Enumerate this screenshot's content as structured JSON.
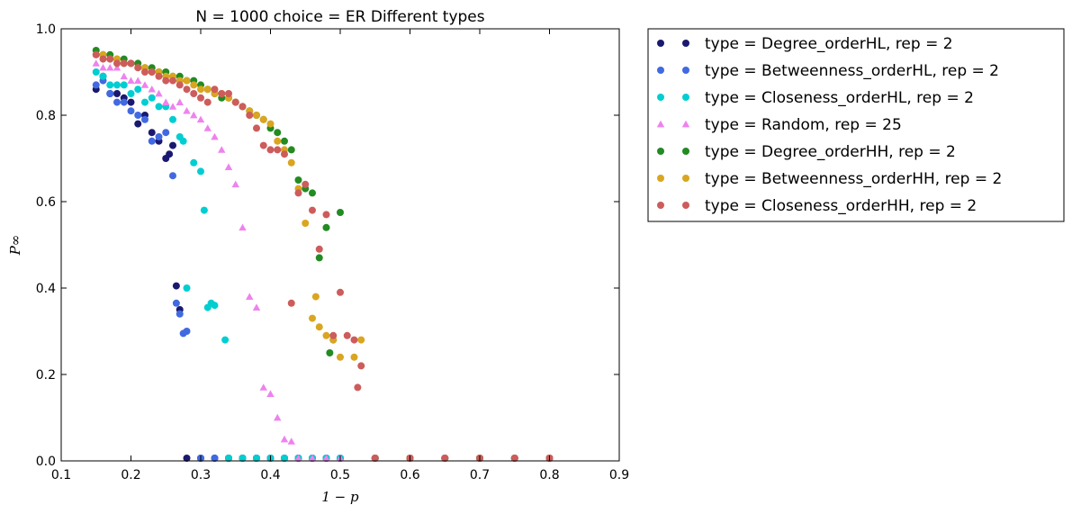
{
  "chart_data": {
    "type": "scatter",
    "title": "N = 1000 choice = ER Different types",
    "xlabel": "1 − p",
    "ylabel": "P∞",
    "xlim": [
      0.1,
      0.9
    ],
    "ylim": [
      0.0,
      1.0
    ],
    "xticks": [
      "0.1",
      "0.2",
      "0.3",
      "0.4",
      "0.5",
      "0.6",
      "0.7",
      "0.8",
      "0.9"
    ],
    "yticks": [
      "0.0",
      "0.2",
      "0.4",
      "0.6",
      "0.8",
      "1.0"
    ],
    "grid": false,
    "legend_position": "outside-right",
    "series": [
      {
        "name": "type = Degree_orderHL, rep = 2",
        "color": "#191970",
        "marker": "circle",
        "x": [
          0.15,
          0.16,
          0.17,
          0.18,
          0.19,
          0.2,
          0.21,
          0.22,
          0.23,
          0.24,
          0.25,
          0.255,
          0.26,
          0.265,
          0.27,
          0.28,
          0.3,
          0.32,
          0.34,
          0.36,
          0.38,
          0.4,
          0.42,
          0.44,
          0.46,
          0.48,
          0.5,
          0.55,
          0.6,
          0.65,
          0.7,
          0.75,
          0.8
        ],
        "y": [
          0.86,
          0.89,
          0.85,
          0.85,
          0.84,
          0.83,
          0.78,
          0.8,
          0.76,
          0.74,
          0.7,
          0.71,
          0.73,
          0.405,
          0.35,
          0.0,
          0.0,
          0.0,
          0.0,
          0.0,
          0.0,
          0.0,
          0.0,
          0.0,
          0.0,
          0.0,
          0.0,
          0.0,
          0.0,
          0.0,
          0.0,
          0.0,
          0.0
        ]
      },
      {
        "name": "type = Betweenness_orderHL, rep = 2",
        "color": "#4169e1",
        "marker": "circle",
        "x": [
          0.15,
          0.16,
          0.17,
          0.18,
          0.19,
          0.2,
          0.21,
          0.22,
          0.23,
          0.24,
          0.25,
          0.26,
          0.265,
          0.27,
          0.275,
          0.28,
          0.3,
          0.32,
          0.34,
          0.36,
          0.38,
          0.4,
          0.42,
          0.44,
          0.46,
          0.48,
          0.5,
          0.55,
          0.6,
          0.65,
          0.7,
          0.75,
          0.8
        ],
        "y": [
          0.87,
          0.88,
          0.85,
          0.83,
          0.83,
          0.81,
          0.8,
          0.79,
          0.74,
          0.75,
          0.76,
          0.66,
          0.365,
          0.34,
          0.295,
          0.3,
          0.0,
          0.0,
          0.0,
          0.0,
          0.0,
          0.0,
          0.0,
          0.0,
          0.0,
          0.0,
          0.0,
          0.0,
          0.0,
          0.0,
          0.0,
          0.0,
          0.0
        ]
      },
      {
        "name": "type = Closeness_orderHL, rep = 2",
        "color": "#00ced1",
        "marker": "circle",
        "x": [
          0.15,
          0.16,
          0.17,
          0.18,
          0.19,
          0.2,
          0.21,
          0.22,
          0.23,
          0.24,
          0.25,
          0.26,
          0.27,
          0.275,
          0.28,
          0.29,
          0.3,
          0.305,
          0.31,
          0.315,
          0.32,
          0.335,
          0.34,
          0.36,
          0.38,
          0.4,
          0.42,
          0.44,
          0.46,
          0.48,
          0.5,
          0.55,
          0.6,
          0.65,
          0.7,
          0.75,
          0.8
        ],
        "y": [
          0.9,
          0.89,
          0.87,
          0.87,
          0.87,
          0.85,
          0.86,
          0.83,
          0.84,
          0.82,
          0.82,
          0.79,
          0.75,
          0.74,
          0.4,
          0.69,
          0.67,
          0.58,
          0.355,
          0.365,
          0.36,
          0.28,
          0.0,
          0.0,
          0.0,
          0.0,
          0.0,
          0.0,
          0.0,
          0.0,
          0.0,
          0.0,
          0.0,
          0.0,
          0.0,
          0.0,
          0.0
        ]
      },
      {
        "name": "type = Random, rep = 25",
        "color": "#ee82ee",
        "marker": "triangle",
        "x": [
          0.15,
          0.16,
          0.17,
          0.18,
          0.19,
          0.2,
          0.21,
          0.22,
          0.23,
          0.24,
          0.25,
          0.26,
          0.27,
          0.28,
          0.29,
          0.3,
          0.31,
          0.32,
          0.33,
          0.34,
          0.35,
          0.36,
          0.37,
          0.38,
          0.39,
          0.4,
          0.41,
          0.42,
          0.43,
          0.44,
          0.46,
          0.48,
          0.5,
          0.55,
          0.6,
          0.65,
          0.7,
          0.75,
          0.8
        ],
        "y": [
          0.92,
          0.91,
          0.91,
          0.91,
          0.89,
          0.88,
          0.88,
          0.87,
          0.86,
          0.85,
          0.83,
          0.82,
          0.83,
          0.81,
          0.8,
          0.79,
          0.77,
          0.75,
          0.72,
          0.68,
          0.64,
          0.54,
          0.38,
          0.355,
          0.17,
          0.155,
          0.1,
          0.05,
          0.045,
          0.0,
          0.0,
          0.0,
          0.0,
          0.0,
          0.0,
          0.0,
          0.0,
          0.0,
          0.0
        ]
      },
      {
        "name": "type = Degree_orderHH, rep = 2",
        "color": "#228b22",
        "marker": "circle",
        "x": [
          0.15,
          0.16,
          0.17,
          0.18,
          0.19,
          0.2,
          0.21,
          0.22,
          0.23,
          0.24,
          0.25,
          0.26,
          0.27,
          0.28,
          0.29,
          0.3,
          0.31,
          0.32,
          0.33,
          0.34,
          0.35,
          0.36,
          0.37,
          0.38,
          0.39,
          0.4,
          0.41,
          0.42,
          0.43,
          0.44,
          0.45,
          0.46,
          0.47,
          0.48,
          0.485,
          0.49,
          0.5,
          0.55,
          0.6,
          0.65,
          0.7,
          0.75,
          0.8
        ],
        "y": [
          0.95,
          0.94,
          0.94,
          0.93,
          0.93,
          0.92,
          0.92,
          0.91,
          0.91,
          0.9,
          0.9,
          0.89,
          0.89,
          0.88,
          0.88,
          0.87,
          0.86,
          0.85,
          0.84,
          0.84,
          0.83,
          0.82,
          0.81,
          0.8,
          0.79,
          0.77,
          0.76,
          0.74,
          0.72,
          0.65,
          0.63,
          0.62,
          0.47,
          0.54,
          0.25,
          0.28,
          0.575,
          0.0,
          0.0,
          0.0,
          0.0,
          0.0,
          0.0
        ]
      },
      {
        "name": "type = Betweenness_orderHH, rep = 2",
        "color": "#daa520",
        "marker": "circle",
        "x": [
          0.15,
          0.16,
          0.17,
          0.18,
          0.19,
          0.2,
          0.21,
          0.22,
          0.23,
          0.24,
          0.25,
          0.26,
          0.27,
          0.28,
          0.29,
          0.3,
          0.31,
          0.32,
          0.33,
          0.34,
          0.35,
          0.36,
          0.37,
          0.38,
          0.39,
          0.4,
          0.41,
          0.42,
          0.43,
          0.44,
          0.45,
          0.46,
          0.465,
          0.47,
          0.48,
          0.49,
          0.5,
          0.52,
          0.53,
          0.55,
          0.6,
          0.65,
          0.7,
          0.75,
          0.8
        ],
        "y": [
          0.94,
          0.94,
          0.93,
          0.93,
          0.92,
          0.92,
          0.91,
          0.91,
          0.9,
          0.9,
          0.89,
          0.89,
          0.88,
          0.88,
          0.87,
          0.86,
          0.86,
          0.85,
          0.85,
          0.84,
          0.83,
          0.82,
          0.81,
          0.8,
          0.79,
          0.78,
          0.74,
          0.72,
          0.69,
          0.63,
          0.55,
          0.33,
          0.38,
          0.31,
          0.29,
          0.28,
          0.24,
          0.24,
          0.28,
          0.0,
          0.0,
          0.0,
          0.0,
          0.0,
          0.0
        ]
      },
      {
        "name": "type = Closeness_orderHH, rep = 2",
        "color": "#cd5c5c",
        "marker": "circle",
        "x": [
          0.15,
          0.16,
          0.17,
          0.18,
          0.19,
          0.2,
          0.21,
          0.22,
          0.23,
          0.24,
          0.25,
          0.26,
          0.27,
          0.28,
          0.29,
          0.3,
          0.31,
          0.32,
          0.33,
          0.34,
          0.35,
          0.36,
          0.37,
          0.38,
          0.39,
          0.4,
          0.41,
          0.42,
          0.43,
          0.44,
          0.45,
          0.46,
          0.47,
          0.48,
          0.49,
          0.5,
          0.51,
          0.52,
          0.525,
          0.53,
          0.55,
          0.6,
          0.65,
          0.7,
          0.75,
          0.8
        ],
        "y": [
          0.94,
          0.93,
          0.93,
          0.92,
          0.92,
          0.92,
          0.91,
          0.9,
          0.9,
          0.89,
          0.88,
          0.88,
          0.87,
          0.86,
          0.85,
          0.84,
          0.83,
          0.86,
          0.85,
          0.85,
          0.83,
          0.82,
          0.8,
          0.77,
          0.73,
          0.72,
          0.72,
          0.71,
          0.365,
          0.62,
          0.64,
          0.58,
          0.49,
          0.57,
          0.29,
          0.39,
          0.29,
          0.28,
          0.17,
          0.22,
          0.0,
          0.0,
          0.0,
          0.0,
          0.0,
          0.0
        ]
      }
    ]
  }
}
